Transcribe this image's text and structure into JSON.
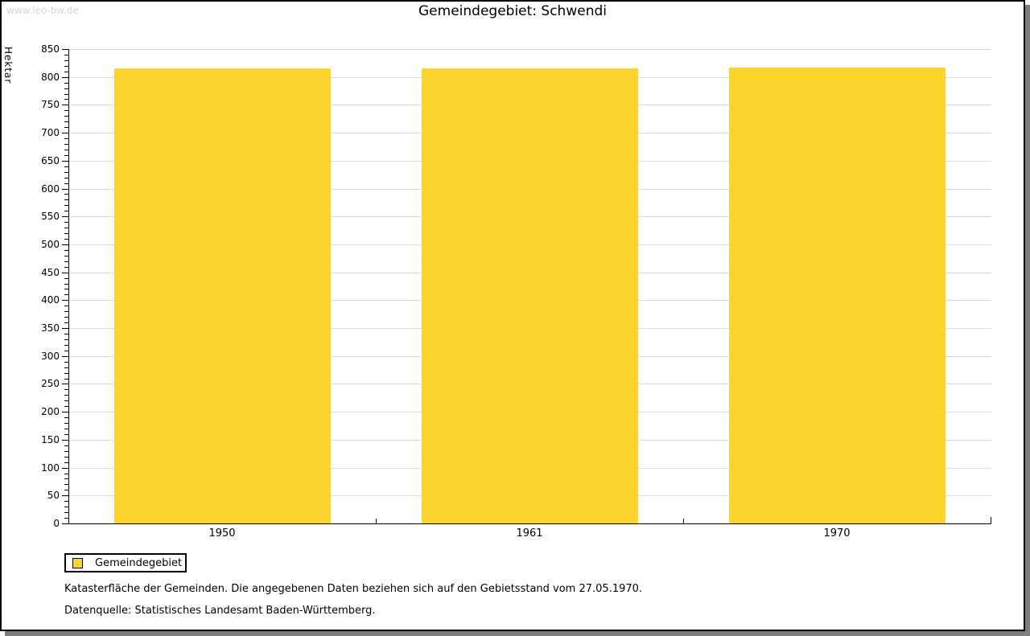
{
  "watermark": "www.leo-bw.de",
  "title": "Gemeindegebiet: Schwendi",
  "chart_data": {
    "type": "bar",
    "title": "Gemeindegebiet: Schwendi",
    "categories": [
      "1950",
      "1961",
      "1970"
    ],
    "series": [
      {
        "name": "Gemeindegebiet",
        "values": [
          816,
          816,
          817
        ]
      }
    ],
    "xlabel": "",
    "ylabel": "Hektar",
    "ylim": [
      0,
      850
    ],
    "ytick_major": 50,
    "ytick_minor": 10,
    "grid": "horizontal-major-only",
    "legend_position": "bottom-left",
    "bar_color": "#fcd42d"
  },
  "legend": {
    "items": [
      {
        "label": "Gemeindegebiet",
        "color": "#fcd42d"
      }
    ]
  },
  "footer": {
    "line1": "Katasterfläche der Gemeinden. Die angegebenen Daten beziehen sich auf den Gebietsstand vom 27.05.1970.",
    "line2": "Datenquelle: Statistisches Landesamt Baden-Württemberg."
  },
  "colors": {
    "bar": "#fcd42d",
    "gridline": "#dcdcdc",
    "axis": "#000000",
    "watermark": "#d6d6d6",
    "frame_shadow": "#7f7f7f",
    "background": "#ffffff"
  }
}
